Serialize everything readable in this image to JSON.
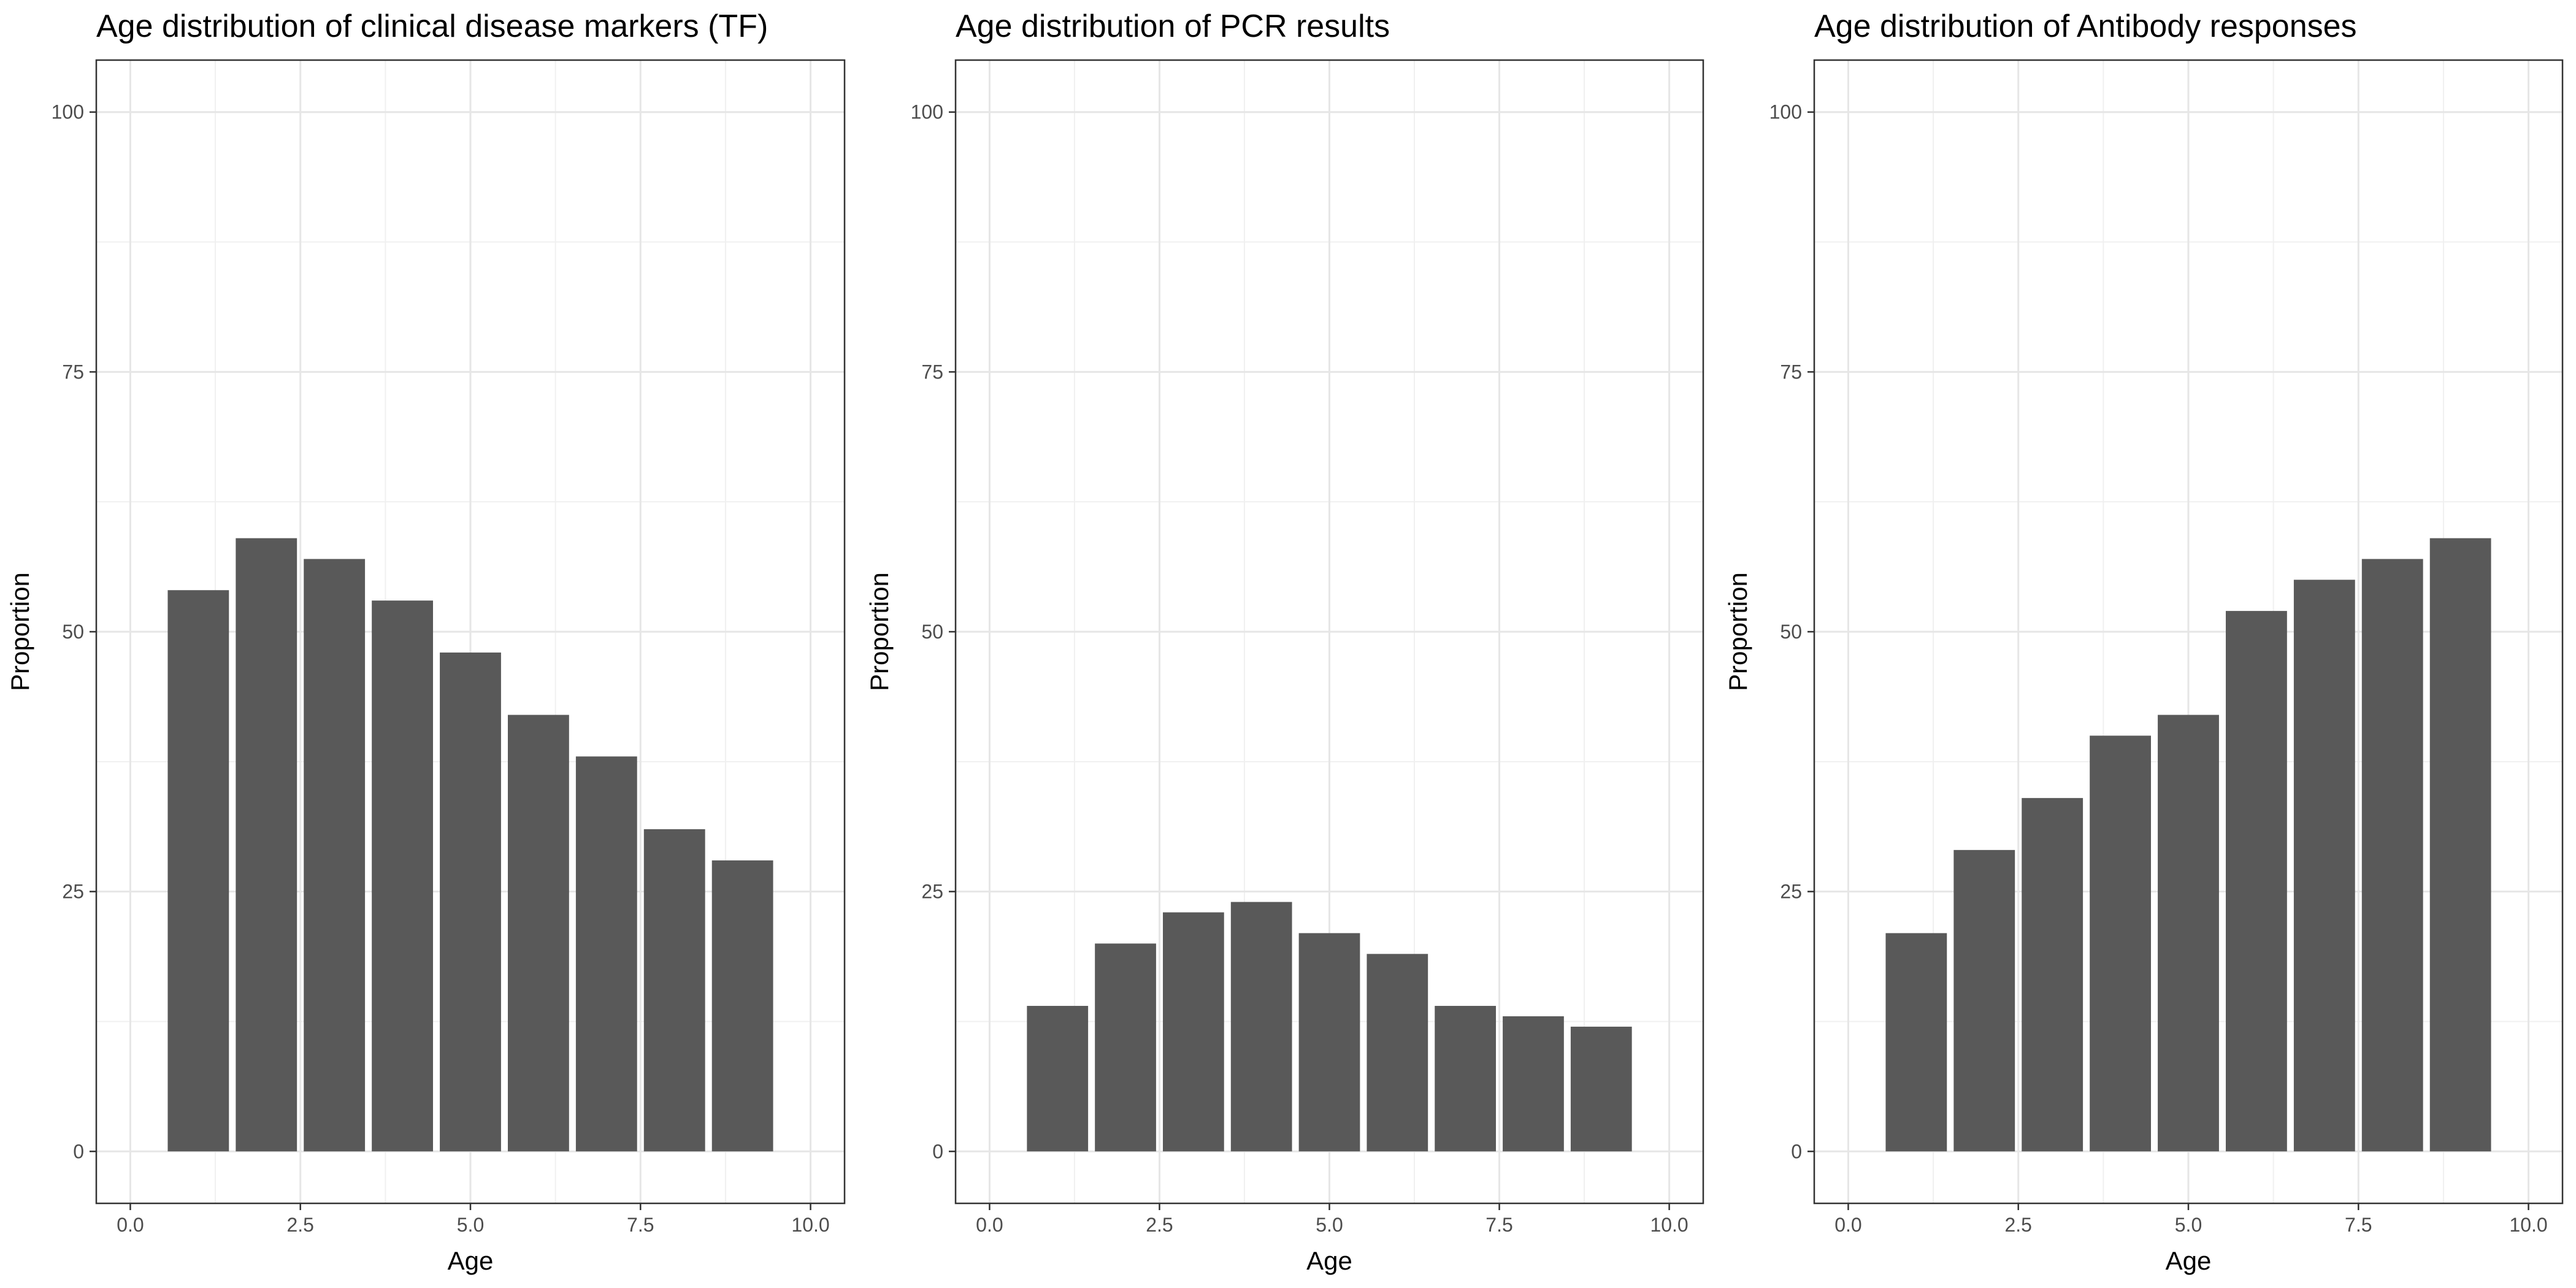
{
  "chart_data": [
    {
      "type": "bar",
      "title": "Age distribution of clinical disease markers (TF)",
      "xlabel": "Age",
      "ylabel": "Proportion",
      "x": [
        1,
        2,
        3,
        4,
        5,
        6,
        7,
        8,
        9
      ],
      "values": [
        54,
        59,
        57,
        53,
        48,
        42,
        38,
        31,
        28
      ],
      "xlim": [
        -0.5,
        10.5
      ],
      "ylim": [
        -5,
        105
      ],
      "xticks": [
        0,
        2.5,
        5,
        7.5,
        10
      ],
      "xtick_labels": [
        "0.0",
        "2.5",
        "5.0",
        "7.5",
        "10.0"
      ],
      "yticks": [
        0,
        25,
        50,
        75,
        100
      ],
      "ytick_labels": [
        "0",
        "25",
        "50",
        "75",
        "100"
      ],
      "grid": true,
      "bar_color": "#595959"
    },
    {
      "type": "bar",
      "title": "Age distribution of PCR results",
      "xlabel": "Age",
      "ylabel": "Proportion",
      "x": [
        1,
        2,
        3,
        4,
        5,
        6,
        7,
        8,
        9
      ],
      "values": [
        14,
        20,
        23,
        24,
        21,
        19,
        14,
        13,
        12
      ],
      "xlim": [
        -0.5,
        10.5
      ],
      "ylim": [
        -5,
        105
      ],
      "xticks": [
        0,
        2.5,
        5,
        7.5,
        10
      ],
      "xtick_labels": [
        "0.0",
        "2.5",
        "5.0",
        "7.5",
        "10.0"
      ],
      "yticks": [
        0,
        25,
        50,
        75,
        100
      ],
      "ytick_labels": [
        "0",
        "25",
        "50",
        "75",
        "100"
      ],
      "grid": true,
      "bar_color": "#595959"
    },
    {
      "type": "bar",
      "title": "Age distribution of Antibody responses",
      "xlabel": "Age",
      "ylabel": "Proportion",
      "x": [
        1,
        2,
        3,
        4,
        5,
        6,
        7,
        8,
        9
      ],
      "values": [
        21,
        29,
        34,
        40,
        42,
        52,
        55,
        57,
        59
      ],
      "xlim": [
        -0.5,
        10.5
      ],
      "ylim": [
        -5,
        105
      ],
      "xticks": [
        0,
        2.5,
        5,
        7.5,
        10
      ],
      "xtick_labels": [
        "0.0",
        "2.5",
        "5.0",
        "7.5",
        "10.0"
      ],
      "yticks": [
        0,
        25,
        50,
        75,
        100
      ],
      "ytick_labels": [
        "0",
        "25",
        "50",
        "75",
        "100"
      ],
      "grid": true,
      "bar_color": "#595959"
    }
  ]
}
